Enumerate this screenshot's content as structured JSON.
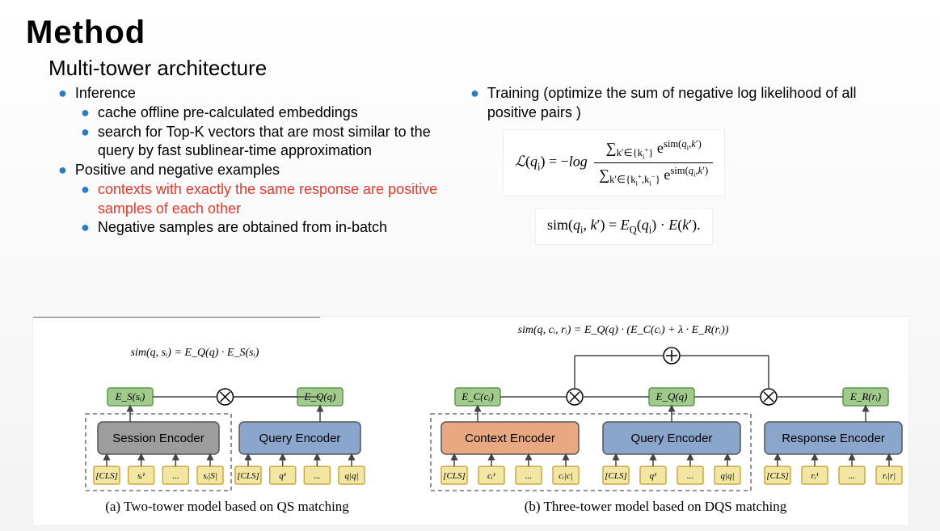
{
  "title": "Method",
  "subtitle": "Multi-tower architecture",
  "left": {
    "i0": "Inference",
    "i1": "cache offline pre-calculated embeddings",
    "i2": "search for Top-K vectors that are most similar to the query by fast sublinear-time approximation",
    "p0": "Positive and negative examples",
    "p1": "contexts with exactly the same response are positive samples of each other",
    "p2": "Negative samples are obtained from in-batch"
  },
  "right": {
    "t0": "Training (optimize the sum of negative log likelihood of all positive pairs )"
  },
  "fig": {
    "capA": "(a) Two-tower model based on QS matching",
    "capB": "(b) Three-tower model based on DQS matching",
    "simA": "sim(q, sᵢ) = E_Q(q) · E_S(sᵢ)",
    "simB": "sim(q, cᵢ, rᵢ) = E_Q(q) · (E_C(cᵢ) + λ · E_R(rᵢ))",
    "encoders": {
      "session": "Session Encoder",
      "query": "Query Encoder",
      "context": "Context Encoder",
      "response": "Response Encoder"
    },
    "heads": {
      "es": "E_S(sᵢ)",
      "eq": "E_Q(q)",
      "ec": "E_C(cᵢ)",
      "er": "E_R(rᵢ)"
    },
    "tokens": {
      "cls": "[CLS]",
      "s1": "sᵢ¹",
      "sS": "sᵢ|S|",
      "q1": "q¹",
      "qQ": "q|q|",
      "c1": "cᵢ¹",
      "cC": "cᵢ|c|",
      "r1": "rᵢ¹",
      "rR": "rᵢ|r|",
      "dots": "..."
    },
    "colors": {
      "bgEncGrey": "#9d9d9d",
      "bgEncBlue": "#8ba6cd",
      "bgEncOrange": "#e8a981",
      "head": "#a2ca8c",
      "headBorder": "#5a9a4a",
      "token": "#f2e6a3",
      "tokenBorder": "#caa940",
      "encBorder": "#555",
      "dashed": "#555",
      "arrow": "#444"
    }
  }
}
